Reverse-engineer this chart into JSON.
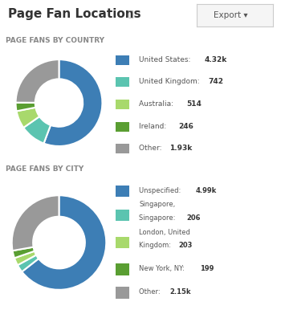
{
  "title": "Page Fan Locations",
  "bg_color": "#ffffff",
  "section1_label": "PAGE FANS BY COUNTRY",
  "section2_label": "PAGE FANS BY CITY",
  "country_values": [
    4320,
    742,
    514,
    246,
    1930
  ],
  "country_colors": [
    "#3d7eb5",
    "#5bc4b0",
    "#a8d96c",
    "#5a9e32",
    "#999999"
  ],
  "country_legend": [
    [
      "United States: ",
      "4.32k"
    ],
    [
      "United Kingdom: ",
      "742"
    ],
    [
      "Australia: ",
      "514"
    ],
    [
      "Ireland: ",
      "246"
    ],
    [
      "Other: ",
      "1.93k"
    ]
  ],
  "city_values": [
    4990,
    206,
    203,
    199,
    2150
  ],
  "city_colors": [
    "#3d7eb5",
    "#5bc4b0",
    "#a8d96c",
    "#5a9e32",
    "#999999"
  ],
  "city_legend": [
    [
      "Unspecified: ",
      "4.99k",
      false
    ],
    [
      "Singapore,\nSingapore: ",
      "206",
      true
    ],
    [
      "London, United\nKingdom: ",
      "203",
      true
    ],
    [
      "New York, NY: ",
      "199",
      false
    ],
    [
      "Other: ",
      "2.15k",
      false
    ]
  ],
  "legend_label_color": "#555555",
  "legend_bold_color": "#333333",
  "section_label_color": "#888888",
  "title_color": "#333333",
  "divider_color": "#dddddd",
  "export_btn_text_color": "#555555",
  "start_angle": 90
}
